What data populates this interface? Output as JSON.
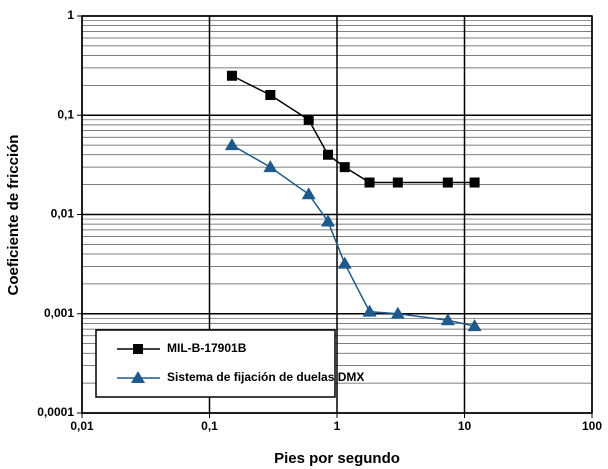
{
  "chart_data": {
    "type": "line",
    "log_x": true,
    "log_y": true,
    "grid": true,
    "minor_y_grid": true,
    "x_label": "Pies por segundo",
    "y_label": "Coeficiente de fricción",
    "xlim": [
      0.01,
      100
    ],
    "xticks": [
      {
        "value": 0.01,
        "label": "0,01"
      },
      {
        "value": 0.1,
        "label": "0,1"
      },
      1,
      10,
      100
    ],
    "ylim": [
      0.0001,
      1
    ],
    "yticks": [
      {
        "value": 0.0001,
        "label": "0,0001"
      },
      {
        "value": 0.001,
        "label": "0,001"
      },
      {
        "value": 0.01,
        "label": "0,01"
      },
      {
        "value": 0.1,
        "label": "0,1"
      },
      1
    ],
    "legend": "lower left",
    "series": [
      {
        "name": "MIL-B-17901B",
        "color": "#000000",
        "marker": "square",
        "x": [
          0.15,
          0.3,
          0.6,
          0.85,
          1.15,
          1.8,
          3,
          7.4,
          12
        ],
        "values": [
          0.25,
          0.16,
          0.09,
          0.04,
          0.03,
          0.021,
          0.021,
          0.021,
          0.021
        ]
      },
      {
        "name": "Sistema de fijación de duelas DMX",
        "color": "#1f5a8c",
        "marker": "triangle",
        "x": [
          0.15,
          0.3,
          0.6,
          0.85,
          1.15,
          1.8,
          3,
          7.4,
          12
        ],
        "values": [
          0.05,
          0.03,
          0.016,
          0.0085,
          0.0032,
          0.00105,
          0.001,
          0.00086,
          0.00075
        ]
      }
    ]
  }
}
